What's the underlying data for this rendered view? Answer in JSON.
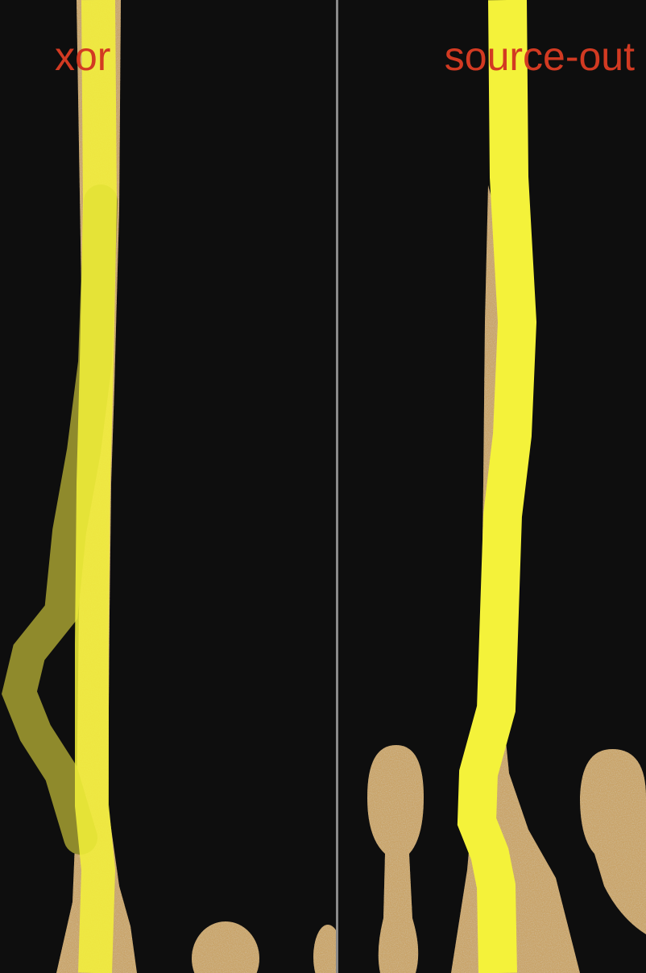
{
  "panels": [
    {
      "label": "xor"
    },
    {
      "label": "source-out"
    }
  ],
  "colors": {
    "background": "#0e0e0e",
    "divider": "#8a8a8a",
    "label": "#d23a22",
    "sponge": "#c9a46a",
    "stroke_bright": "#f4f23a",
    "stroke_dim": "#8f8a2c"
  }
}
